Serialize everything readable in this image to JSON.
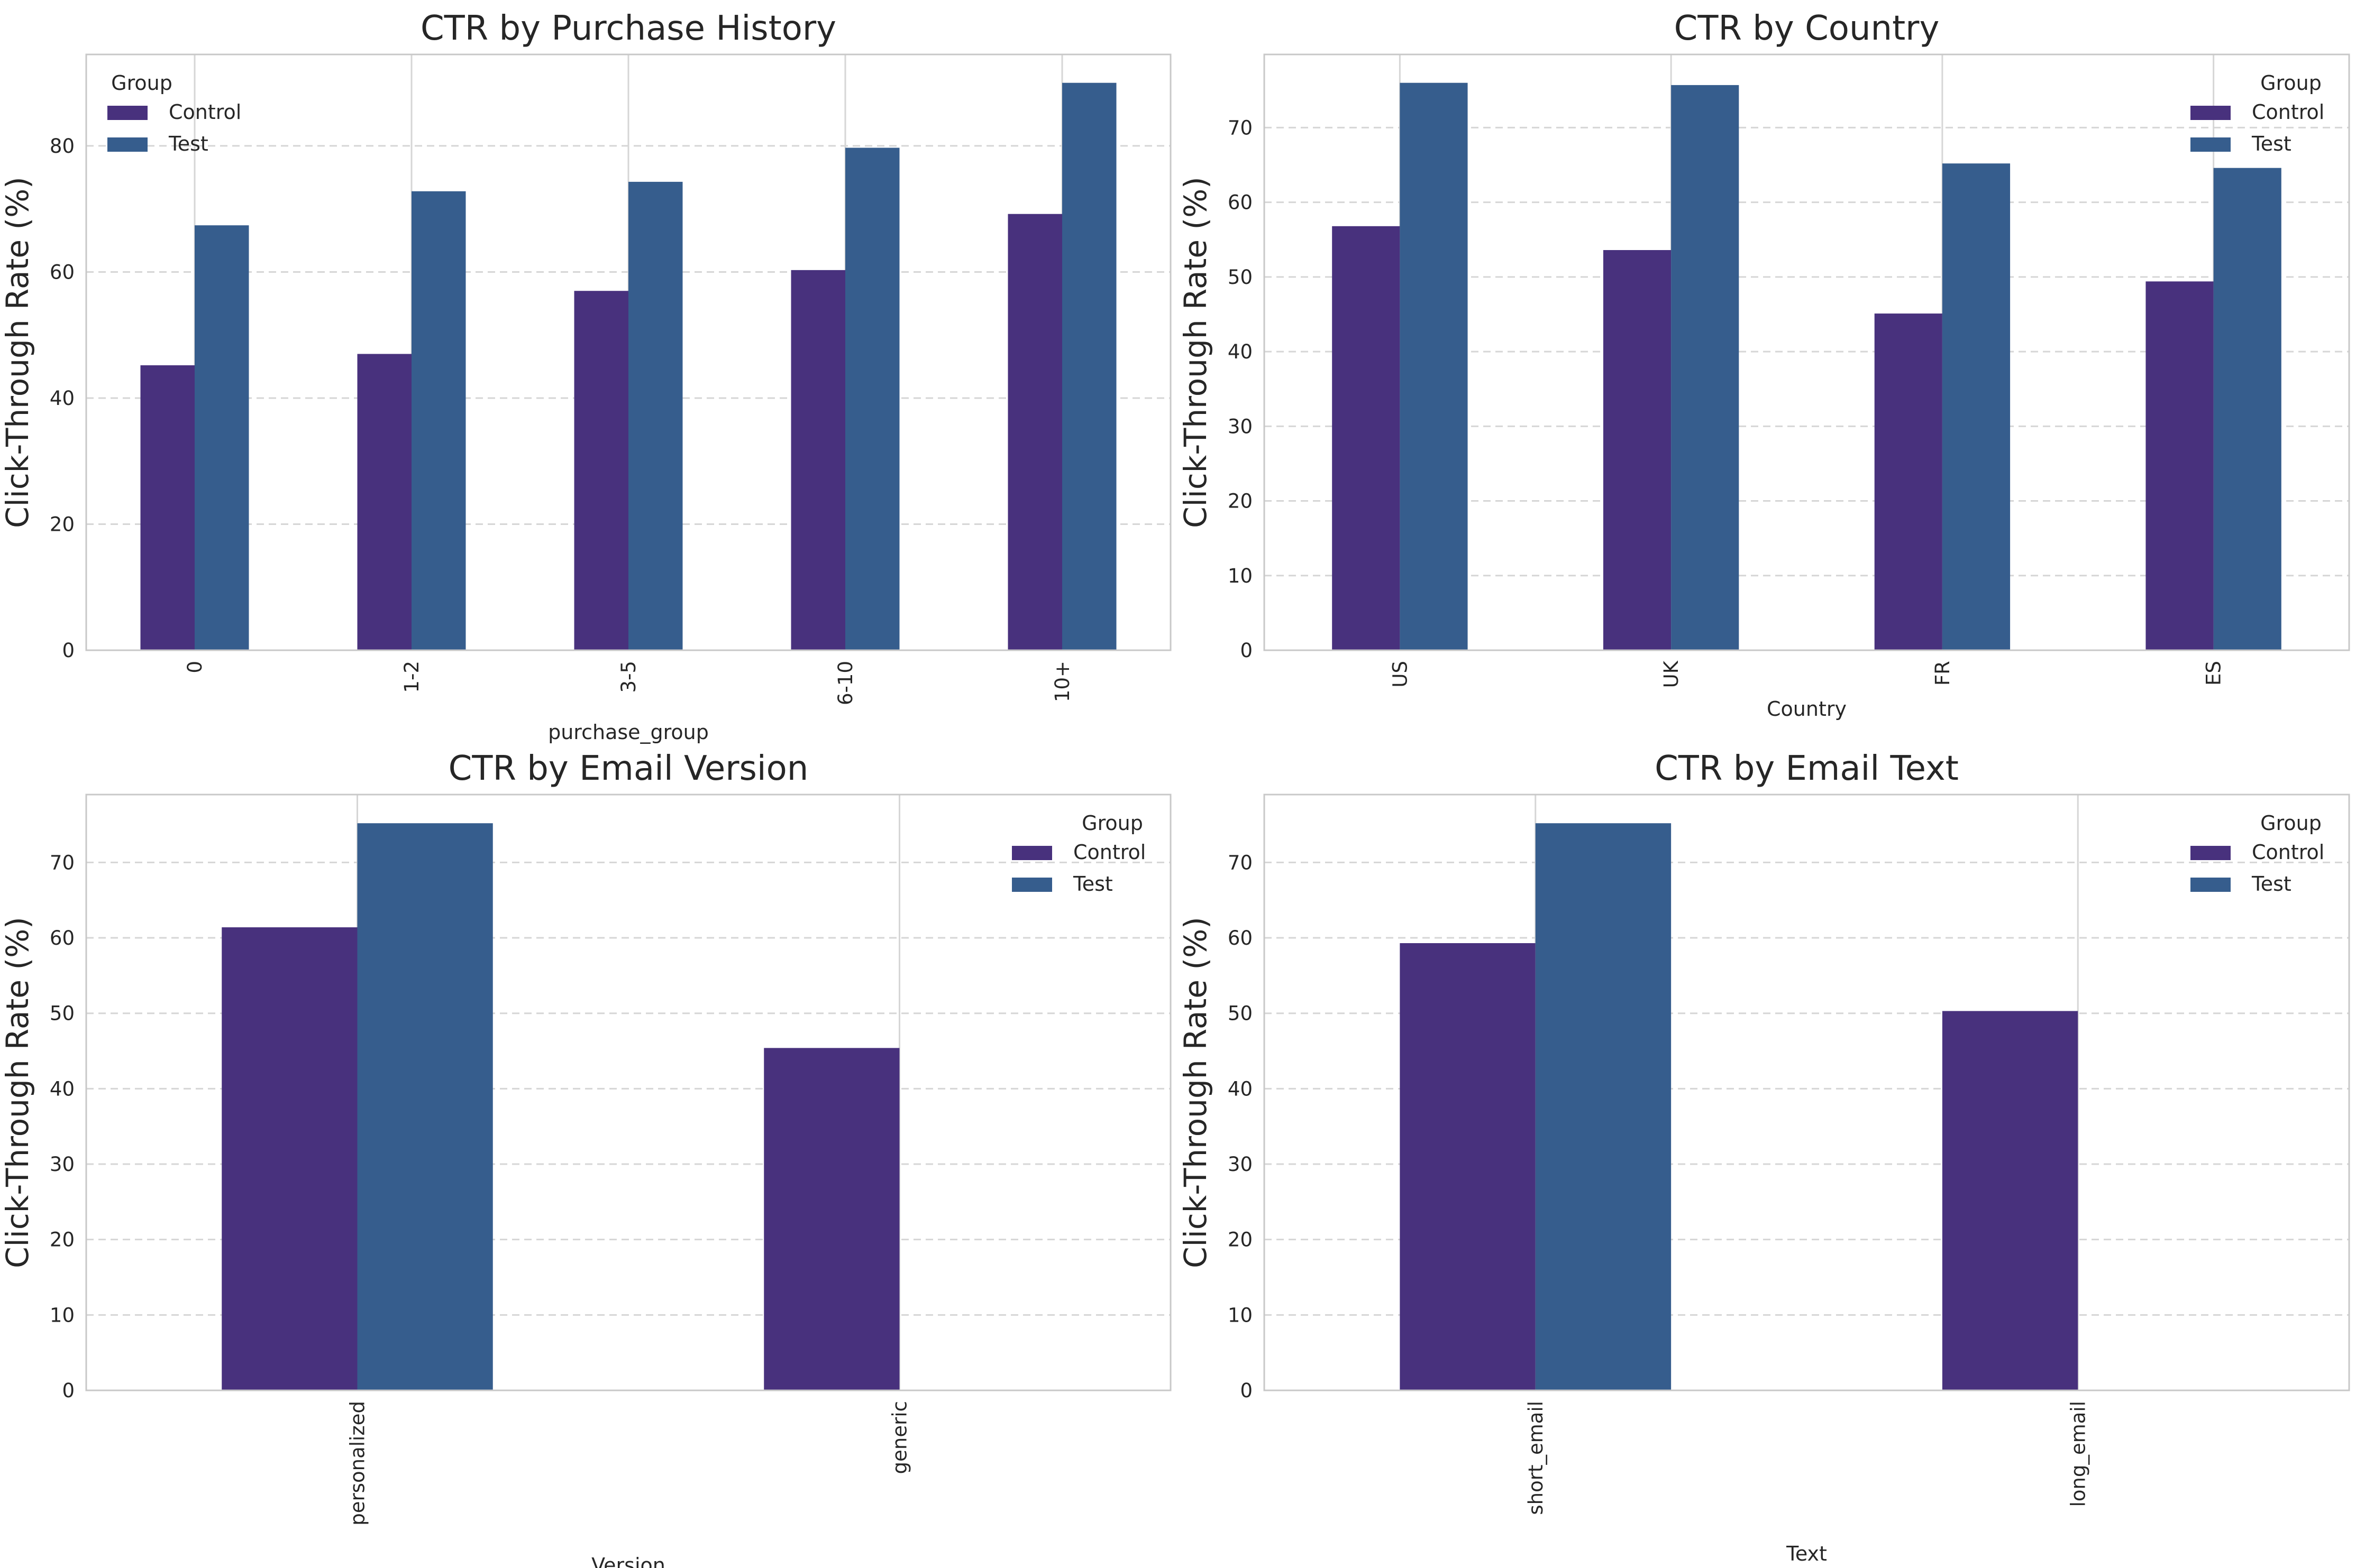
{
  "colors": {
    "control": "#48317d",
    "test": "#365d8d",
    "grid": "#d6d6d6",
    "spine": "#c8c8c8",
    "text": "#262626"
  },
  "legend": {
    "title": "Group",
    "labels": [
      "Control",
      "Test"
    ]
  },
  "chart_data": [
    {
      "type": "bar",
      "title": "CTR by Purchase History",
      "xlabel": "purchase_group",
      "ylabel": "Click-Through Rate (%)",
      "categories": [
        "0",
        "1-2",
        "3-5",
        "6-10",
        "10+"
      ],
      "series": [
        {
          "name": "Control",
          "values": [
            45.2,
            47.0,
            57.0,
            60.3,
            69.2
          ]
        },
        {
          "name": "Test",
          "values": [
            67.4,
            72.8,
            74.3,
            79.7,
            90.0
          ]
        }
      ],
      "ylim": [
        0,
        94.5
      ],
      "yticks": [
        0,
        20,
        40,
        60,
        80
      ],
      "legend_position": "top-left",
      "grid": true
    },
    {
      "type": "bar",
      "title": "CTR by Country",
      "xlabel": "Country",
      "ylabel": "Click-Through Rate (%)",
      "categories": [
        "US",
        "UK",
        "FR",
        "ES"
      ],
      "series": [
        {
          "name": "Control",
          "values": [
            56.8,
            53.6,
            45.1,
            49.4
          ]
        },
        {
          "name": "Test",
          "values": [
            76.0,
            75.7,
            65.2,
            64.6
          ]
        }
      ],
      "ylim": [
        0,
        79.8
      ],
      "yticks": [
        0,
        10,
        20,
        30,
        40,
        50,
        60,
        70
      ],
      "legend_position": "top-right",
      "grid": true
    },
    {
      "type": "bar",
      "title": "CTR by Email Version",
      "xlabel": "Version",
      "ylabel": "Click-Through Rate (%)",
      "categories": [
        "personalized",
        "generic"
      ],
      "series": [
        {
          "name": "Control",
          "values": [
            61.4,
            45.4
          ]
        },
        {
          "name": "Test",
          "values": [
            75.2,
            null
          ]
        }
      ],
      "ylim": [
        0,
        79
      ],
      "yticks": [
        0,
        10,
        20,
        30,
        40,
        50,
        60,
        70
      ],
      "legend_position": "top-right",
      "grid": true
    },
    {
      "type": "bar",
      "title": "CTR by Email Text",
      "xlabel": "Text",
      "ylabel": "Click-Through Rate (%)",
      "categories": [
        "short_email",
        "long_email"
      ],
      "series": [
        {
          "name": "Control",
          "values": [
            59.3,
            50.3
          ]
        },
        {
          "name": "Test",
          "values": [
            75.2,
            null
          ]
        }
      ],
      "ylim": [
        0,
        79
      ],
      "yticks": [
        0,
        10,
        20,
        30,
        40,
        50,
        60,
        70
      ],
      "legend_position": "top-right",
      "grid": true
    }
  ]
}
